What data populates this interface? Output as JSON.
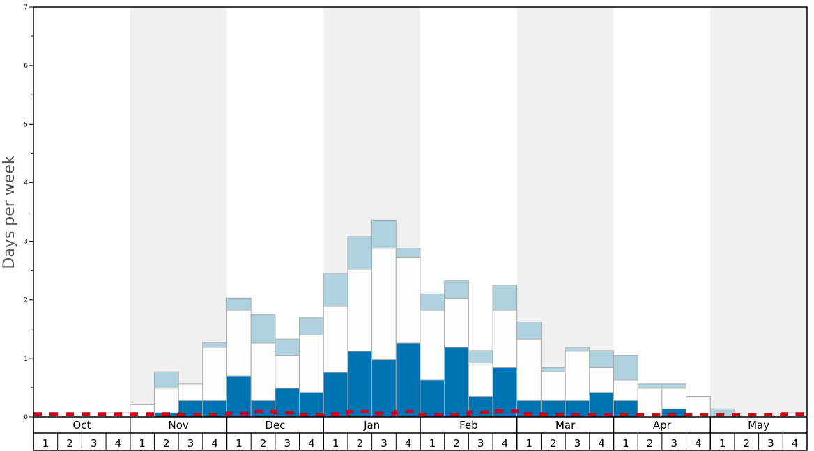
{
  "chart_data": {
    "type": "bar",
    "stacked": true,
    "ylabel": "Days per week",
    "ylim": [
      0,
      7
    ],
    "yticks": [
      "0",
      "1",
      "2",
      "3",
      "4",
      "5",
      "6",
      "7"
    ],
    "months": [
      "Oct",
      "Nov",
      "Dec",
      "Jan",
      "Feb",
      "Mar",
      "Apr",
      "May"
    ],
    "weeks": [
      "1",
      "2",
      "3",
      "4"
    ],
    "shaded_months": [
      "Nov",
      "Jan",
      "Mar",
      "May"
    ],
    "colors": {
      "dark": "#0073b3",
      "mid": "#fdfdfb",
      "light": "#aed3df",
      "shade": "#f0f0f0",
      "line": "#d0021b",
      "edge": "#aaaaaa"
    },
    "series": [
      {
        "name": "dark",
        "values": [
          0,
          0,
          0,
          0,
          0,
          0.07,
          0.28,
          0.28,
          0.7,
          0.28,
          0.49,
          0.42,
          0.76,
          1.12,
          0.98,
          1.26,
          0.63,
          1.19,
          0.35,
          0.84,
          0.28,
          0.28,
          0.28,
          0.42,
          0.28,
          0,
          0.14,
          0,
          0,
          0,
          0,
          0
        ]
      },
      {
        "name": "mid",
        "values": [
          0,
          0,
          0,
          0.07,
          0.21,
          0.42,
          0.28,
          0.91,
          1.12,
          0.98,
          0.56,
          0.98,
          1.13,
          1.4,
          1.9,
          1.47,
          1.19,
          0.84,
          0.57,
          0.98,
          1.05,
          0.49,
          0.84,
          0.42,
          0.35,
          0.49,
          0.35,
          0.35,
          0,
          0,
          0,
          0.07
        ]
      },
      {
        "name": "light",
        "values": [
          0,
          0,
          0,
          0,
          0,
          0.28,
          0,
          0.08,
          0.21,
          0.49,
          0.28,
          0.29,
          0.56,
          0.56,
          0.48,
          0.15,
          0.28,
          0.29,
          0.21,
          0.43,
          0.29,
          0.07,
          0.07,
          0.29,
          0.42,
          0.07,
          0.07,
          0,
          0.14,
          0,
          0,
          0
        ]
      },
      {
        "name": "line",
        "values": [
          0.05,
          0.05,
          0.05,
          0.05,
          0.05,
          0.05,
          0.04,
          0.04,
          0.06,
          0.09,
          0.07,
          0.04,
          0.05,
          0.09,
          0.06,
          0.09,
          0.04,
          0.04,
          0.08,
          0.1,
          0.05,
          0.04,
          0.04,
          0.04,
          0.04,
          0.04,
          0.04,
          0.04,
          0.04,
          0.04,
          0.04,
          0.05
        ]
      }
    ]
  }
}
